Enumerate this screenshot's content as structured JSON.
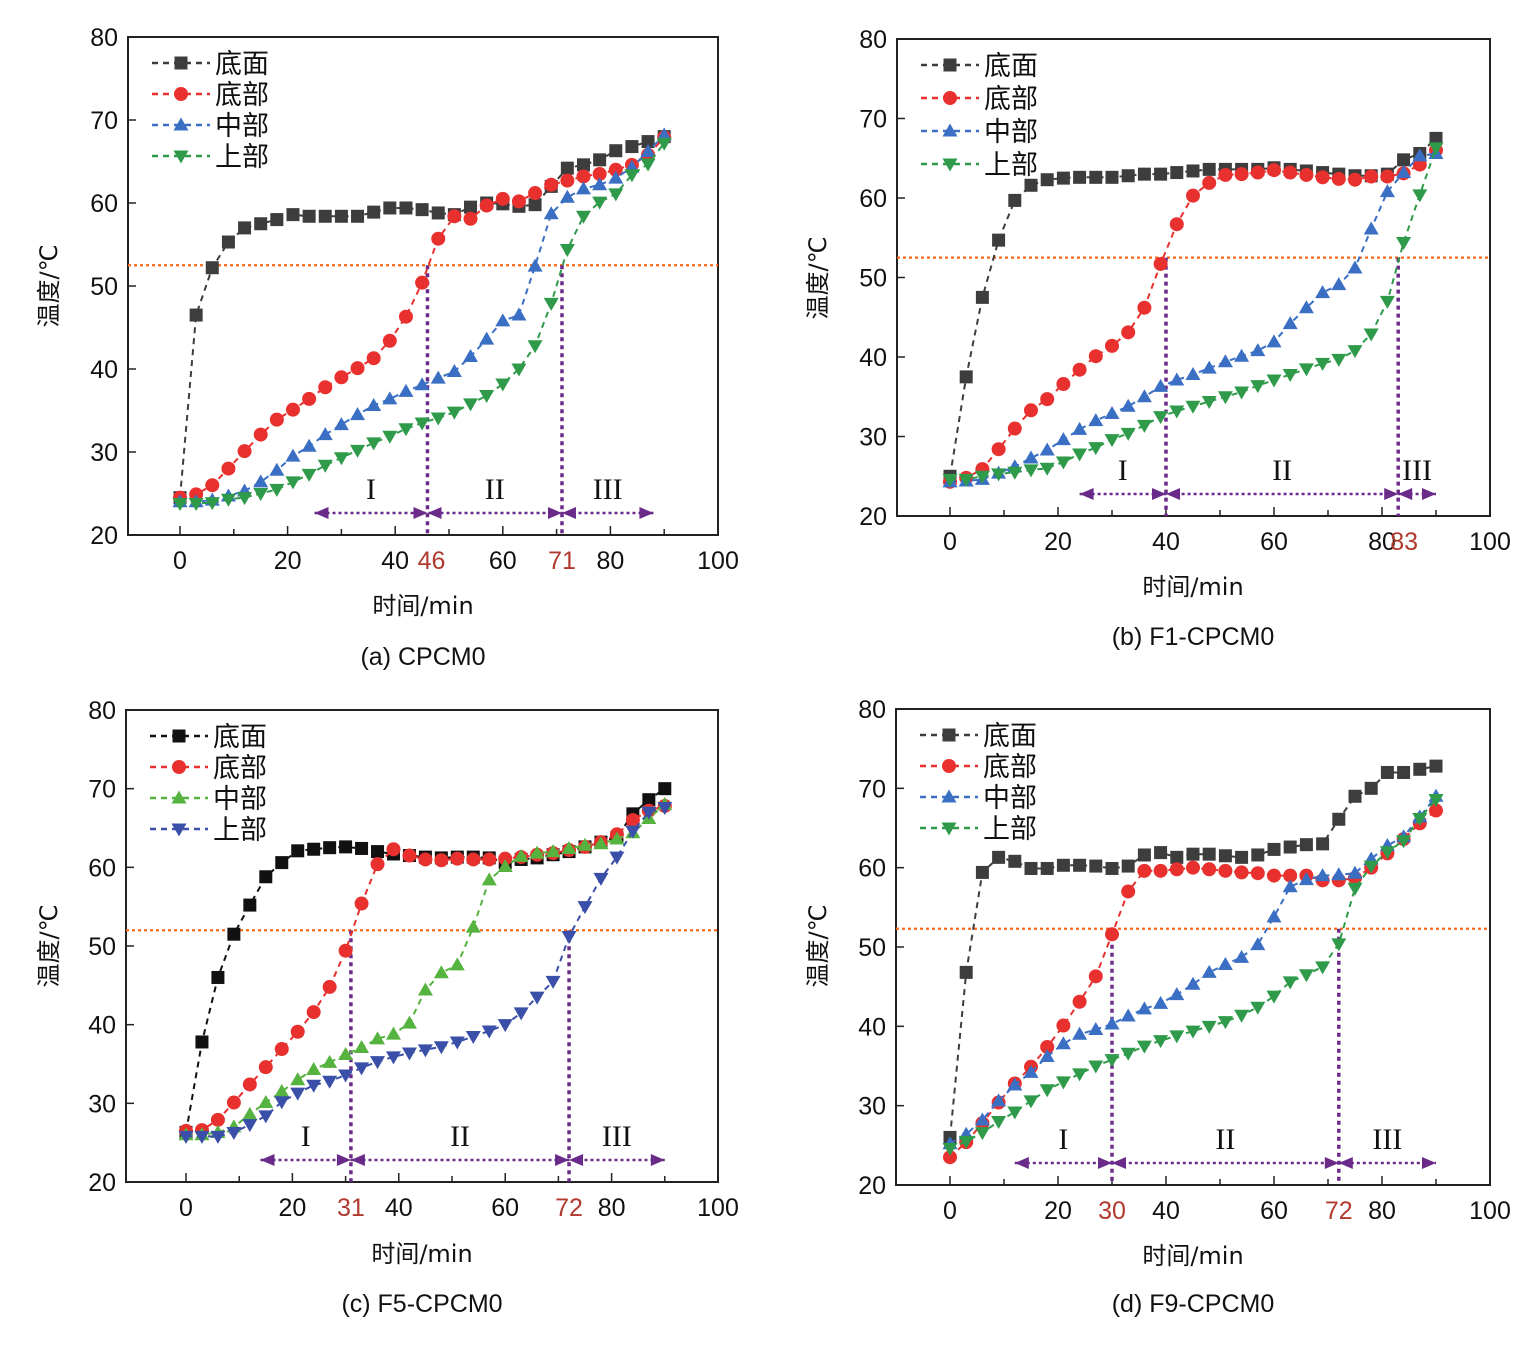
{
  "chart_data": [
    {
      "type": "line",
      "caption": "(a) CPCM0",
      "xlabel": "时间/min",
      "ylabel": "温度/℃",
      "xlim": [
        -10,
        100
      ],
      "ylim": [
        20,
        80
      ],
      "xticks": [
        0,
        20,
        40,
        60,
        80,
        100
      ],
      "yticks": [
        20,
        30,
        40,
        50,
        60,
        70,
        80
      ],
      "highlight_xticks": [
        46,
        71
      ],
      "reference_line_y": 52.5,
      "stage_boundaries": [
        46,
        71
      ],
      "stage_arrow_range": [
        25,
        88
      ],
      "stages": [
        "I",
        "II",
        "III"
      ],
      "legend_position": "top-left",
      "x": [
        0,
        3,
        6,
        9,
        12,
        15,
        18,
        21,
        24,
        27,
        30,
        33,
        36,
        39,
        42,
        45,
        48,
        51,
        54,
        57,
        60,
        63,
        66,
        69,
        72,
        75,
        78,
        81,
        84,
        87,
        90
      ],
      "series": [
        {
          "name": "底面",
          "marker": "square",
          "color": "#3d3d3d",
          "values": [
            24.5,
            46.5,
            52.2,
            55.3,
            57.0,
            57.5,
            58.0,
            58.6,
            58.4,
            58.4,
            58.4,
            58.4,
            58.9,
            59.4,
            59.4,
            59.2,
            58.8,
            58.6,
            59.5,
            60.0,
            59.9,
            59.6,
            59.8,
            62.0,
            64.2,
            64.6,
            65.2,
            66.3,
            66.8,
            67.4,
            68.0
          ]
        },
        {
          "name": "底部",
          "marker": "circle",
          "color": "#e8312f",
          "values": [
            24.5,
            24.9,
            26.0,
            28.0,
            30.1,
            32.1,
            33.9,
            35.1,
            36.4,
            37.8,
            39.0,
            40.1,
            41.3,
            43.4,
            46.3,
            50.4,
            55.7,
            58.4,
            58.1,
            59.7,
            60.5,
            60.2,
            61.2,
            62.2,
            62.7,
            63.2,
            63.5,
            64.0,
            64.6,
            65.8,
            67.9
          ]
        },
        {
          "name": "中部",
          "marker": "triangle-up",
          "color": "#3a6fc4",
          "values": [
            24.0,
            24.0,
            24.2,
            24.7,
            25.3,
            26.4,
            27.8,
            29.5,
            30.7,
            32.1,
            33.3,
            34.5,
            35.6,
            36.4,
            37.3,
            38.1,
            38.9,
            39.7,
            41.5,
            43.6,
            45.8,
            46.5,
            52.4,
            58.7,
            60.7,
            61.7,
            62.2,
            63.0,
            64.3,
            66.2,
            68.2
          ]
        },
        {
          "name": "上部",
          "marker": "triangle-down",
          "color": "#2f9b4a",
          "values": [
            23.8,
            23.8,
            23.9,
            24.3,
            24.5,
            25.0,
            25.5,
            26.4,
            27.3,
            28.4,
            29.3,
            30.2,
            31.1,
            31.9,
            32.8,
            33.5,
            34.1,
            34.8,
            35.8,
            36.8,
            38.2,
            40.0,
            42.8,
            47.9,
            54.4,
            58.4,
            60.1,
            61.1,
            63.4,
            64.7,
            67.2
          ]
        }
      ]
    },
    {
      "type": "line",
      "caption": "(b) F1-CPCM0",
      "xlabel": "时间/min",
      "ylabel": "温度/℃",
      "xlim": [
        -10,
        100
      ],
      "ylim": [
        20,
        80
      ],
      "xticks": [
        0,
        20,
        40,
        60,
        80,
        100
      ],
      "yticks": [
        20,
        30,
        40,
        50,
        60,
        70,
        80
      ],
      "highlight_xticks": [
        83
      ],
      "reference_line_y": 52.5,
      "stage_boundaries": [
        40,
        83
      ],
      "stage_arrow_range": [
        24,
        90
      ],
      "stages": [
        "I",
        "II",
        "III"
      ],
      "legend_position": "top-left",
      "x": [
        0,
        3,
        6,
        9,
        12,
        15,
        18,
        21,
        24,
        27,
        30,
        33,
        36,
        39,
        42,
        45,
        48,
        51,
        54,
        57,
        60,
        63,
        66,
        69,
        72,
        75,
        78,
        81,
        84,
        87,
        90
      ],
      "series": [
        {
          "name": "底面",
          "marker": "square",
          "color": "#3d3d3d",
          "values": [
            25.0,
            37.5,
            47.5,
            54.7,
            59.7,
            61.6,
            62.3,
            62.5,
            62.6,
            62.6,
            62.6,
            62.8,
            63.0,
            63.0,
            63.2,
            63.4,
            63.6,
            63.6,
            63.6,
            63.6,
            63.8,
            63.6,
            63.4,
            63.2,
            63.0,
            62.8,
            62.8,
            63.0,
            64.8,
            65.6,
            67.5
          ]
        },
        {
          "name": "底部",
          "marker": "circle",
          "color": "#e8312f",
          "values": [
            24.3,
            24.8,
            25.9,
            28.4,
            31.0,
            33.3,
            34.7,
            36.6,
            38.4,
            40.1,
            41.4,
            43.1,
            46.2,
            51.7,
            56.7,
            60.3,
            61.9,
            62.9,
            63.0,
            63.2,
            63.5,
            63.2,
            62.9,
            62.6,
            62.4,
            62.3,
            62.7,
            62.7,
            63.1,
            64.2,
            66.0
          ]
        },
        {
          "name": "中部",
          "marker": "triangle-up",
          "color": "#3a6fc4",
          "values": [
            24.3,
            24.4,
            24.6,
            25.4,
            26.2,
            27.3,
            28.3,
            29.6,
            30.9,
            32.0,
            32.9,
            33.8,
            35.0,
            36.3,
            37.1,
            37.8,
            38.6,
            39.4,
            40.1,
            40.8,
            41.9,
            44.2,
            46.2,
            48.1,
            49.1,
            51.2,
            56.1,
            60.8,
            63.2,
            65.3,
            65.6
          ]
        },
        {
          "name": "上部",
          "marker": "triangle-down",
          "color": "#2f9b4a",
          "values": [
            24.6,
            24.6,
            25.0,
            25.3,
            25.5,
            25.8,
            26.0,
            26.8,
            27.8,
            28.6,
            29.6,
            30.4,
            31.4,
            32.5,
            33.2,
            33.8,
            34.4,
            35.0,
            35.6,
            36.4,
            37.1,
            37.8,
            38.5,
            39.2,
            39.7,
            40.8,
            42.9,
            47.0,
            54.4,
            60.4,
            66.3
          ]
        }
      ]
    },
    {
      "type": "line",
      "caption": "(c) F5-CPCM0",
      "xlabel": "时间/min",
      "ylabel": "温度/℃",
      "xlim": [
        -10,
        100
      ],
      "ylim": [
        20,
        80
      ],
      "xticks": [
        0,
        20,
        40,
        60,
        80,
        100
      ],
      "yticks": [
        20,
        30,
        40,
        50,
        60,
        70,
        80
      ],
      "highlight_xticks": [
        31,
        72
      ],
      "reference_line_y": 52.0,
      "stage_boundaries": [
        31,
        72
      ],
      "stage_arrow_range": [
        14,
        90
      ],
      "stages": [
        "I",
        "II",
        "III"
      ],
      "legend_position": "top-left",
      "x": [
        0,
        3,
        6,
        9,
        12,
        15,
        18,
        21,
        24,
        27,
        30,
        33,
        36,
        39,
        42,
        45,
        48,
        51,
        54,
        57,
        60,
        63,
        66,
        69,
        72,
        75,
        78,
        81,
        84,
        87,
        90
      ],
      "series": [
        {
          "name": "底面",
          "marker": "square",
          "color": "#111111",
          "values": [
            26.3,
            37.8,
            46.0,
            51.5,
            55.2,
            58.8,
            60.6,
            62.1,
            62.3,
            62.5,
            62.6,
            62.4,
            62.0,
            61.7,
            61.5,
            61.3,
            61.2,
            61.3,
            61.3,
            61.2,
            60.6,
            61.0,
            61.2,
            61.6,
            62.0,
            62.6,
            63.2,
            63.8,
            66.8,
            68.6,
            70.0
          ]
        },
        {
          "name": "底部",
          "marker": "circle",
          "color": "#e8312f",
          "values": [
            26.5,
            26.6,
            27.9,
            30.1,
            32.4,
            34.6,
            36.9,
            39.1,
            41.6,
            44.8,
            49.4,
            55.4,
            60.4,
            62.3,
            61.5,
            61.0,
            60.9,
            61.1,
            61.0,
            61.0,
            61.1,
            61.3,
            61.6,
            61.8,
            62.2,
            62.6,
            63.2,
            64.2,
            66.0,
            67.2,
            67.8
          ]
        },
        {
          "name": "中部",
          "marker": "triangle-up",
          "color": "#56b33f",
          "values": [
            26.0,
            26.0,
            26.3,
            27.0,
            28.6,
            30.1,
            31.5,
            33.0,
            34.3,
            35.2,
            36.2,
            37.1,
            38.2,
            38.8,
            40.2,
            44.4,
            46.6,
            47.6,
            52.4,
            58.4,
            60.1,
            61.4,
            61.8,
            62.0,
            62.4,
            62.8,
            63.0,
            63.6,
            64.4,
            66.2,
            68.0
          ]
        },
        {
          "name": "上部",
          "marker": "triangle-down",
          "color": "#3a4fa8",
          "values": [
            25.8,
            25.8,
            25.8,
            26.3,
            27.3,
            28.4,
            30.2,
            31.3,
            32.3,
            32.8,
            33.6,
            34.5,
            35.3,
            35.9,
            36.4,
            36.8,
            37.2,
            37.8,
            38.5,
            39.2,
            40.0,
            41.5,
            43.5,
            45.5,
            51.2,
            55.0,
            58.6,
            61.3,
            64.6,
            67.0,
            67.6
          ]
        }
      ]
    },
    {
      "type": "line",
      "caption": "(d) F9-CPCM0",
      "xlabel": "时间/min",
      "ylabel": "温度/℃",
      "xlim": [
        -10,
        100
      ],
      "ylim": [
        20,
        80
      ],
      "xticks": [
        0,
        20,
        40,
        60,
        80,
        100
      ],
      "yticks": [
        20,
        30,
        40,
        50,
        60,
        70,
        80
      ],
      "highlight_xticks": [
        30,
        72
      ],
      "reference_line_y": 52.3,
      "stage_boundaries": [
        30,
        72
      ],
      "stage_arrow_range": [
        12,
        90
      ],
      "stages": [
        "I",
        "II",
        "III"
      ],
      "legend_position": "top-left",
      "x": [
        0,
        3,
        6,
        9,
        12,
        15,
        18,
        21,
        24,
        27,
        30,
        33,
        36,
        39,
        42,
        45,
        48,
        51,
        54,
        57,
        60,
        63,
        66,
        69,
        72,
        75,
        78,
        81,
        84,
        87,
        90
      ],
      "series": [
        {
          "name": "底面",
          "marker": "square",
          "color": "#3d3d3d",
          "values": [
            26.0,
            46.8,
            59.4,
            61.3,
            60.8,
            59.9,
            59.9,
            60.3,
            60.3,
            60.2,
            59.9,
            60.2,
            61.6,
            61.9,
            61.3,
            61.7,
            61.7,
            61.5,
            61.3,
            61.6,
            62.3,
            62.6,
            62.9,
            63.0,
            66.1,
            69.0,
            70.0,
            72.0,
            72.0,
            72.4,
            72.8
          ]
        },
        {
          "name": "底部",
          "marker": "circle",
          "color": "#e8312f",
          "values": [
            23.5,
            25.4,
            27.8,
            30.4,
            32.8,
            34.9,
            37.4,
            40.1,
            43.1,
            46.3,
            51.6,
            57.0,
            59.6,
            59.6,
            59.8,
            60.0,
            59.8,
            59.6,
            59.4,
            59.3,
            59.0,
            59.0,
            59.0,
            58.4,
            58.4,
            58.7,
            60.0,
            61.8,
            63.6,
            65.6,
            67.2
          ]
        },
        {
          "name": "中部",
          "marker": "triangle-up",
          "color": "#3a6fc4",
          "values": [
            25.2,
            26.4,
            28.2,
            30.6,
            32.6,
            34.2,
            36.2,
            37.8,
            39.0,
            39.6,
            40.3,
            41.3,
            42.2,
            42.9,
            44.0,
            45.3,
            46.8,
            47.8,
            48.7,
            50.3,
            53.8,
            57.6,
            58.5,
            59.0,
            59.1,
            59.3,
            61.1,
            62.8,
            63.9,
            66.4,
            69.0
          ]
        },
        {
          "name": "上部",
          "marker": "triangle-down",
          "color": "#2f9b4a",
          "values": [
            24.6,
            25.5,
            26.6,
            28.0,
            29.2,
            30.6,
            32.0,
            33.0,
            34.0,
            35.0,
            35.8,
            36.6,
            37.5,
            38.2,
            38.8,
            39.4,
            40.0,
            40.6,
            41.4,
            42.4,
            43.8,
            45.6,
            46.5,
            47.5,
            50.4,
            57.4,
            60.2,
            62.0,
            63.4,
            66.2,
            68.6
          ]
        }
      ]
    }
  ],
  "colors": {
    "reference_line": "#ff6a1a",
    "stage_markers": "#6a2a8a",
    "highlight_tick": "#b03a2e"
  }
}
